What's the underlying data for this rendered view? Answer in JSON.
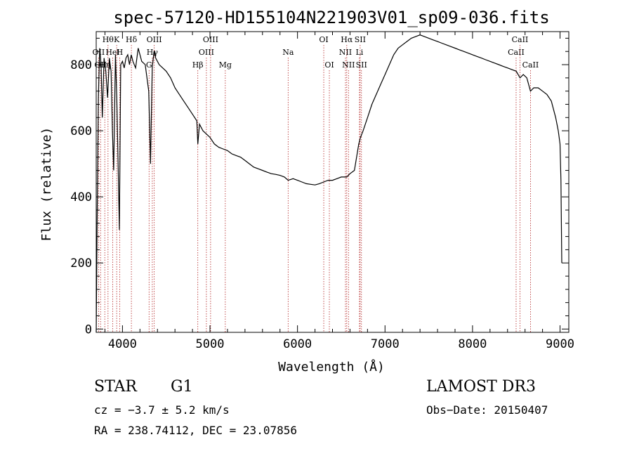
{
  "chart_data": {
    "type": "line",
    "title": "spec-57120-HD155104N221903V01_sp09-036.fits",
    "xlabel": "Wavelength (Å)",
    "ylabel": "Flux (relative)",
    "xlim": [
      3700,
      9100
    ],
    "ylim": [
      -10,
      900
    ],
    "xticks": [
      4000,
      5000,
      6000,
      7000,
      8000,
      9000
    ],
    "yticks": [
      0,
      200,
      400,
      600,
      800
    ],
    "grid": false,
    "line_color": "#000000",
    "marker_color": "#b22222",
    "series": [
      {
        "x": [
          3700,
          3710,
          3725,
          3740,
          3755,
          3770,
          3790,
          3810,
          3830,
          3850,
          3870,
          3885,
          3900,
          3920,
          3935,
          3950,
          3965,
          3980,
          4000,
          4020,
          4040,
          4060,
          4080,
          4100,
          4120,
          4150,
          4180,
          4220,
          4260,
          4300,
          4320,
          4340,
          4360,
          4380,
          4420,
          4460,
          4500,
          4550,
          4600,
          4650,
          4700,
          4750,
          4800,
          4850,
          4861,
          4880,
          4920,
          4960,
          5000,
          5050,
          5100,
          5150,
          5200,
          5250,
          5300,
          5350,
          5400,
          5450,
          5500,
          5550,
          5600,
          5650,
          5700,
          5750,
          5800,
          5850,
          5893,
          5950,
          6000,
          6050,
          6100,
          6150,
          6200,
          6250,
          6300,
          6350,
          6400,
          6450,
          6500,
          6563,
          6600,
          6650,
          6700,
          6720,
          6750,
          6800,
          6850,
          6900,
          6950,
          7000,
          7050,
          7100,
          7150,
          7200,
          7250,
          7300,
          7350,
          7400,
          7450,
          7500,
          7550,
          7600,
          7650,
          7700,
          7750,
          7800,
          7850,
          7900,
          7950,
          8000,
          8050,
          8100,
          8150,
          8200,
          8250,
          8300,
          8350,
          8400,
          8450,
          8500,
          8542,
          8580,
          8620,
          8662,
          8700,
          8750,
          8800,
          8850,
          8900,
          8950,
          8980,
          9000,
          9010,
          9020
        ],
        "y": [
          -10,
          300,
          700,
          850,
          800,
          640,
          820,
          780,
          700,
          820,
          780,
          600,
          480,
          830,
          700,
          500,
          300,
          800,
          810,
          790,
          820,
          830,
          800,
          830,
          810,
          790,
          850,
          810,
          800,
          720,
          500,
          790,
          840,
          820,
          800,
          790,
          780,
          760,
          730,
          710,
          690,
          670,
          650,
          630,
          560,
          620,
          600,
          590,
          580,
          560,
          550,
          545,
          540,
          530,
          525,
          520,
          510,
          500,
          490,
          485,
          480,
          475,
          470,
          468,
          465,
          460,
          450,
          455,
          450,
          445,
          440,
          438,
          436,
          440,
          445,
          450,
          450,
          455,
          460,
          460,
          470,
          480,
          560,
          580,
          600,
          640,
          680,
          710,
          740,
          770,
          800,
          830,
          850,
          860,
          870,
          880,
          885,
          890,
          885,
          880,
          875,
          870,
          865,
          860,
          855,
          850,
          845,
          840,
          835,
          830,
          825,
          820,
          815,
          810,
          805,
          800,
          795,
          790,
          785,
          780,
          760,
          770,
          760,
          720,
          730,
          730,
          720,
          710,
          690,
          640,
          600,
          560,
          450,
          200
        ]
      }
    ],
    "line_markers": [
      {
        "x": 3727,
        "label": "OII",
        "row": 2
      },
      {
        "x": 3750,
        "label": "OII",
        "row": 3
      },
      {
        "x": 3798,
        "label": "Hη",
        "row": 3
      },
      {
        "x": 3835,
        "label": "Hθ",
        "row": 1
      },
      {
        "x": 3889,
        "label": "HeI",
        "row": 2
      },
      {
        "x": 3934,
        "label": "K",
        "row": 1
      },
      {
        "x": 3968,
        "label": "H",
        "row": 2
      },
      {
        "x": 4102,
        "label": "Hδ",
        "row": 1
      },
      {
        "x": 4304,
        "label": "G",
        "row": 3
      },
      {
        "x": 4341,
        "label": "Hγ",
        "row": 2
      },
      {
        "x": 4363,
        "label": "OIII",
        "row": 1
      },
      {
        "x": 4861,
        "label": "Hβ",
        "row": 3
      },
      {
        "x": 4959,
        "label": "OIII",
        "row": 2
      },
      {
        "x": 5007,
        "label": "OIII",
        "row": 1
      },
      {
        "x": 5175,
        "label": "Mg",
        "row": 3
      },
      {
        "x": 5893,
        "label": "Na",
        "row": 2
      },
      {
        "x": 6300,
        "label": "OI",
        "row": 1
      },
      {
        "x": 6364,
        "label": "OI",
        "row": 3
      },
      {
        "x": 6548,
        "label": "NII",
        "row": 2
      },
      {
        "x": 6563,
        "label": "Hα",
        "row": 1
      },
      {
        "x": 6583,
        "label": "NII",
        "row": 3
      },
      {
        "x": 6708,
        "label": "Li",
        "row": 2
      },
      {
        "x": 6716,
        "label": "SII",
        "row": 1
      },
      {
        "x": 6731,
        "label": "SII",
        "row": 3
      },
      {
        "x": 8498,
        "label": "CaII",
        "row": 2
      },
      {
        "x": 8542,
        "label": "CaII",
        "row": 1
      },
      {
        "x": 8662,
        "label": "CaII",
        "row": 3
      }
    ]
  },
  "info": {
    "class": "STAR",
    "subclass": "G1",
    "survey": "LAMOST DR3",
    "cz": "cz = −3.7 ± 5.2 km/s",
    "obs_date": "Obs−Date: 20150407",
    "radec": "RA = 238.74112, DEC =  23.07856"
  }
}
